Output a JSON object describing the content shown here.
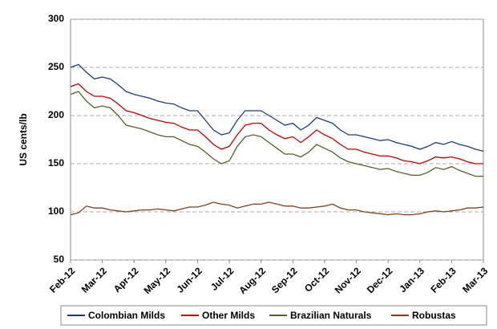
{
  "chart_data": {
    "type": "line",
    "y_label": "US cents/lb",
    "categories": [
      "Feb-12",
      null,
      null,
      null,
      "Mar-12",
      null,
      null,
      null,
      "Apr-12",
      null,
      null,
      null,
      "May-12",
      null,
      null,
      null,
      "Jun-12",
      null,
      null,
      null,
      "Jul-12",
      null,
      null,
      null,
      "Aug-12",
      null,
      null,
      null,
      "Sep-12",
      null,
      null,
      null,
      "Oct-12",
      null,
      null,
      null,
      "Nov-12",
      null,
      null,
      null,
      "Dec-12",
      null,
      null,
      null,
      "Jan-13",
      null,
      null,
      null,
      "Feb-13",
      null,
      null,
      null,
      "Mar-13"
    ],
    "series": [
      {
        "name": "Colombian Milds",
        "color": "#1f3a7a",
        "values": [
          250,
          253,
          245,
          238,
          240,
          238,
          232,
          225,
          222,
          220,
          218,
          215,
          213,
          212,
          208,
          205,
          205,
          195,
          185,
          180,
          182,
          195,
          205,
          205,
          205,
          200,
          195,
          190,
          192,
          185,
          190,
          198,
          195,
          192,
          185,
          180,
          180,
          178,
          176,
          174,
          175,
          172,
          170,
          168,
          165,
          168,
          172,
          170,
          173,
          170,
          168,
          165,
          163
        ]
      },
      {
        "name": "Other Milds",
        "color": "#c00000",
        "values": [
          230,
          233,
          225,
          220,
          220,
          218,
          212,
          205,
          203,
          200,
          197,
          195,
          193,
          192,
          188,
          185,
          185,
          178,
          170,
          165,
          168,
          180,
          190,
          192,
          192,
          185,
          180,
          176,
          178,
          172,
          178,
          185,
          180,
          176,
          170,
          165,
          165,
          162,
          160,
          158,
          158,
          156,
          153,
          152,
          150,
          153,
          157,
          156,
          157,
          155,
          152,
          150,
          150
        ]
      },
      {
        "name": "Brazilian Naturals",
        "color": "#4f6228",
        "values": [
          222,
          225,
          215,
          208,
          210,
          208,
          200,
          190,
          188,
          186,
          183,
          180,
          178,
          178,
          174,
          170,
          168,
          162,
          155,
          150,
          153,
          168,
          178,
          180,
          178,
          172,
          166,
          160,
          160,
          157,
          162,
          170,
          166,
          162,
          156,
          152,
          150,
          148,
          146,
          144,
          145,
          142,
          140,
          138,
          138,
          141,
          146,
          144,
          147,
          143,
          140,
          137,
          137
        ]
      },
      {
        "name": "Robustas",
        "color": "#7f3f1f",
        "values": [
          97,
          99,
          106,
          104,
          104,
          102,
          101,
          100,
          101,
          102,
          102,
          103,
          102,
          101,
          103,
          105,
          105,
          107,
          110,
          108,
          107,
          104,
          106,
          108,
          108,
          110,
          108,
          106,
          106,
          104,
          104,
          105,
          106,
          108,
          104,
          102,
          102,
          100,
          99,
          98,
          97,
          98,
          97,
          97,
          98,
          100,
          101,
          100,
          101,
          102,
          104,
          104,
          105
        ]
      }
    ],
    "ylim": [
      50,
      300
    ],
    "yticks": [
      50,
      100,
      150,
      200,
      250,
      300
    ],
    "grid": true,
    "legend": "bottom"
  }
}
